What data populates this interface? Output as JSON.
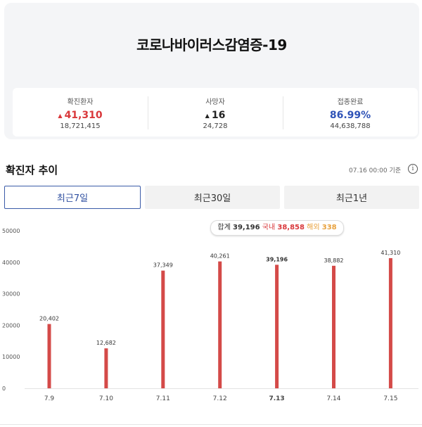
{
  "header": {
    "title": "코로나바이러스감염증-19"
  },
  "stats": [
    {
      "label": "확진환자",
      "value": "41,310",
      "sub": "18,721,415",
      "trend": "up"
    },
    {
      "label": "사망자",
      "value": "16",
      "sub": "24,728",
      "trend": "up"
    },
    {
      "label": "접종완료",
      "value": "86.99%",
      "sub": "44,638,788"
    }
  ],
  "section": {
    "title": "확진자 추이",
    "updated": "07.16 00:00 기준",
    "info_icon": "info-icon"
  },
  "tabs": [
    "최근7일",
    "최근30일",
    "최근1년"
  ],
  "active_tab": "최근7일",
  "tooltip": {
    "total_label": "합계",
    "total": "39,196",
    "domestic_label": "국내",
    "domestic": "38,858",
    "overseas_label": "해외",
    "overseas": "338"
  },
  "colors": {
    "bar": "#d44a48",
    "accent_red": "#d9383b",
    "accent_blue": "#2f53b7",
    "active_tab": "#3a5ba8"
  },
  "chart_data": {
    "type": "bar",
    "categories": [
      "7.9",
      "7.10",
      "7.11",
      "7.12",
      "7.13",
      "7.14",
      "7.15"
    ],
    "values": [
      20402,
      12682,
      37349,
      40261,
      39196,
      38882,
      41310
    ],
    "value_labels": [
      "20,402",
      "12,682",
      "37,349",
      "40,261",
      "39,196",
      "38,882",
      "41,310"
    ],
    "y_ticks": [
      "0",
      "10000",
      "20000",
      "30000",
      "40000",
      "50000"
    ],
    "ylim": [
      0,
      50000
    ],
    "highlight_category": "7.13",
    "grid": false
  }
}
